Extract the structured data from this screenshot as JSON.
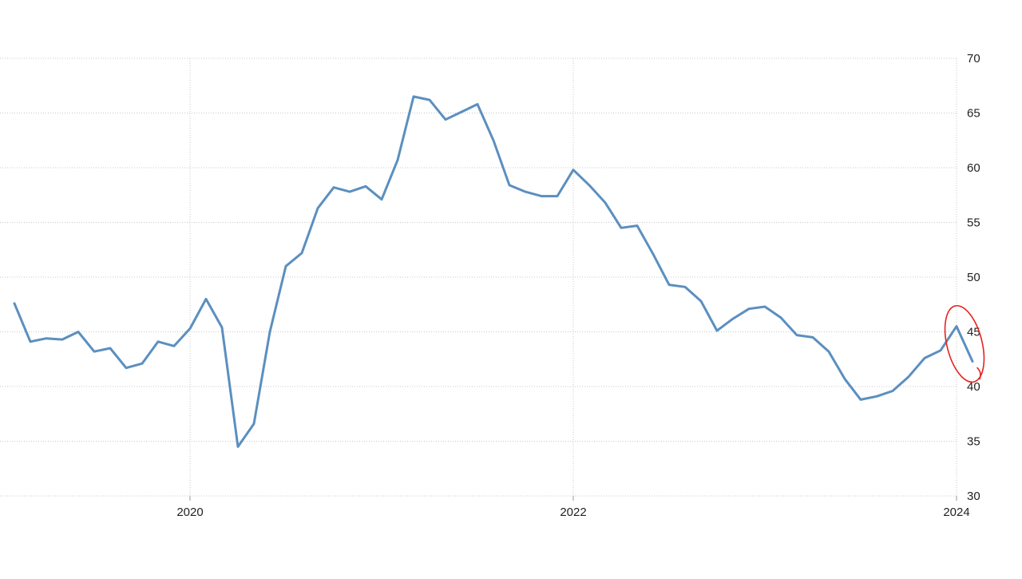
{
  "chart_data": {
    "type": "line",
    "title": "",
    "xlabel": "",
    "ylabel": "",
    "x_ticks": [
      "2020",
      "2022",
      "2024"
    ],
    "y_ticks": [
      30,
      35,
      40,
      45,
      50,
      55,
      60,
      65,
      70
    ],
    "ylim": [
      30,
      70
    ],
    "xlim": [
      "2019-01",
      "2024-03"
    ],
    "grid": true,
    "legend": "none",
    "line_color": "#5b8fbf",
    "highlight_color": "#e8211d",
    "series": [
      {
        "x": [
          "2019-02",
          "2019-03",
          "2019-04",
          "2019-05",
          "2019-06",
          "2019-07",
          "2019-08",
          "2019-09",
          "2019-10",
          "2019-11",
          "2019-12",
          "2020-01",
          "2020-02",
          "2020-03",
          "2020-04",
          "2020-05",
          "2020-06",
          "2020-07",
          "2020-08",
          "2020-09",
          "2020-10",
          "2020-11",
          "2020-12",
          "2021-01",
          "2021-02",
          "2021-03",
          "2021-04",
          "2021-05",
          "2021-06",
          "2021-07",
          "2021-08",
          "2021-09",
          "2021-10",
          "2021-11",
          "2021-12",
          "2022-01",
          "2022-02",
          "2022-03",
          "2022-04",
          "2022-05",
          "2022-06",
          "2022-07",
          "2022-08",
          "2022-09",
          "2022-10",
          "2022-11",
          "2022-12",
          "2023-01",
          "2023-02",
          "2023-03",
          "2023-04",
          "2023-05",
          "2023-06",
          "2023-07",
          "2023-08",
          "2023-09",
          "2023-10",
          "2023-11",
          "2023-12",
          "2024-01",
          "2024-02"
        ],
        "values": [
          47.6,
          44.1,
          44.4,
          44.3,
          45.0,
          43.2,
          43.5,
          41.7,
          42.1,
          44.1,
          43.7,
          45.3,
          48.0,
          45.4,
          34.5,
          36.6,
          45.0,
          51.0,
          52.2,
          56.3,
          58.2,
          57.8,
          58.3,
          57.1,
          60.7,
          66.5,
          66.2,
          64.4,
          65.1,
          65.8,
          62.5,
          58.4,
          57.8,
          57.4,
          57.4,
          59.8,
          58.4,
          56.8,
          54.5,
          54.7,
          52.1,
          49.3,
          49.1,
          47.8,
          45.1,
          46.2,
          47.1,
          47.3,
          46.3,
          44.7,
          44.5,
          43.2,
          40.7,
          38.8,
          39.1,
          39.6,
          40.9,
          42.6,
          43.3,
          45.5,
          42.3
        ]
      }
    ]
  }
}
